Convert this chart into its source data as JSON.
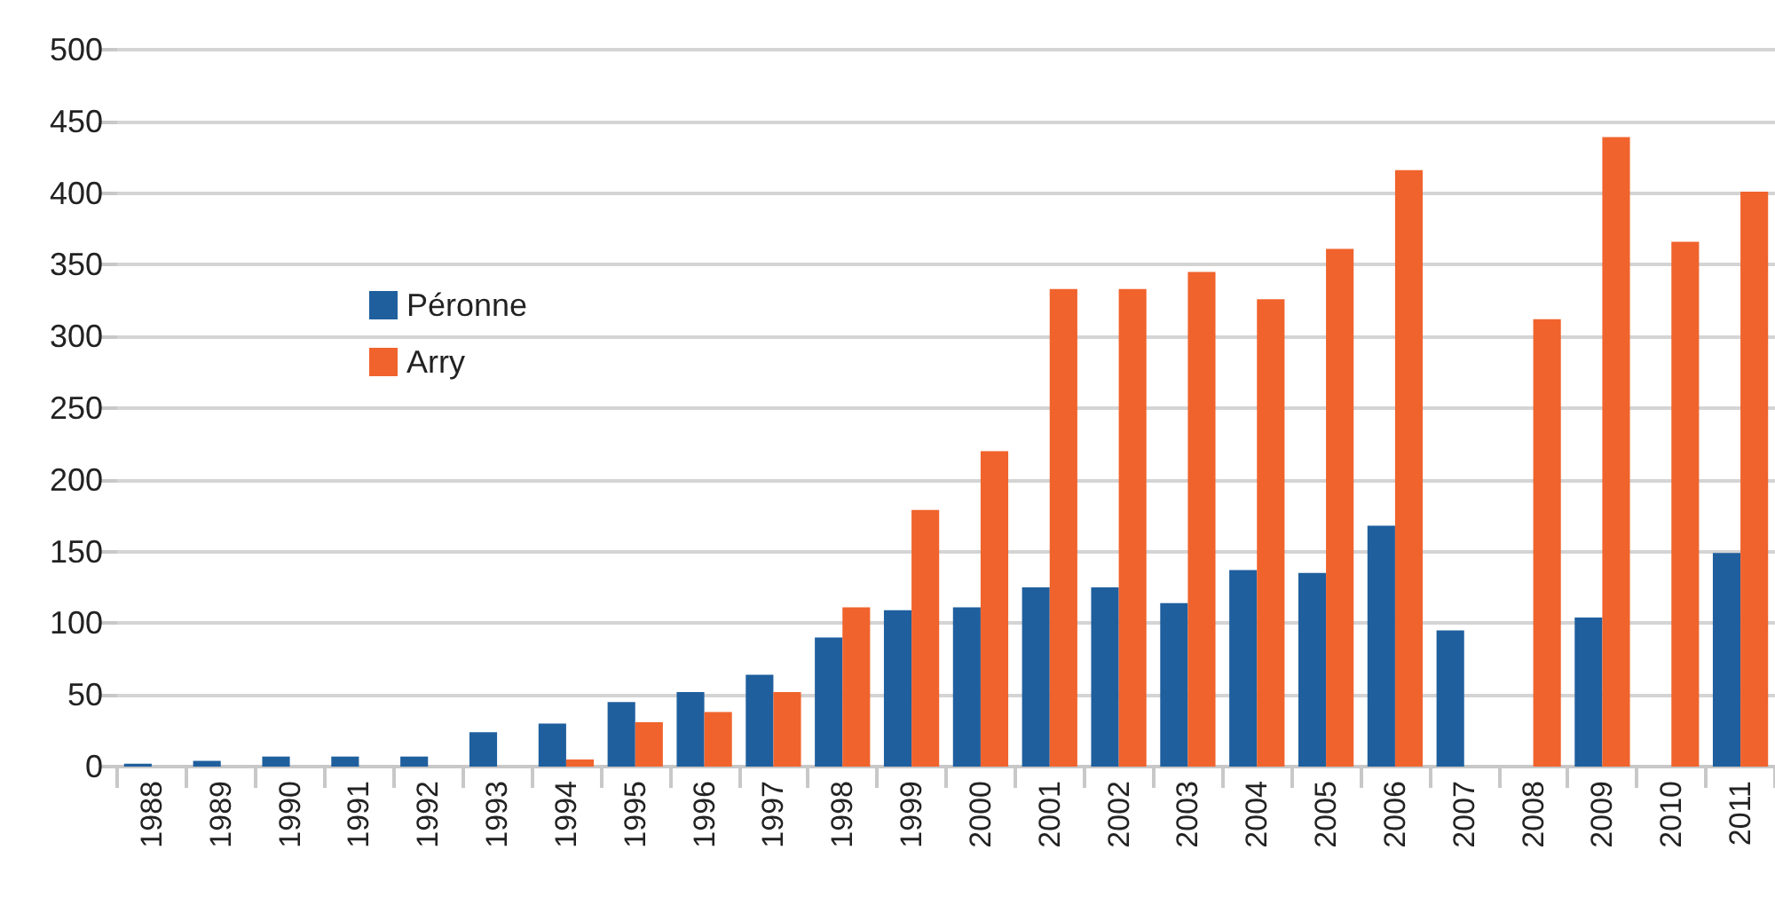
{
  "chart_data": {
    "type": "bar",
    "categories": [
      "1988",
      "1989",
      "1990",
      "1991",
      "1992",
      "1993",
      "1994",
      "1995",
      "1996",
      "1997",
      "1998",
      "1999",
      "2000",
      "2001",
      "2002",
      "2003",
      "2004",
      "2005",
      "2006",
      "2007",
      "2008",
      "2009",
      "2010",
      "2011"
    ],
    "series": [
      {
        "name": "Péronne",
        "color": "#1f5f9e",
        "values": [
          2,
          4,
          7,
          7,
          7,
          24,
          30,
          45,
          52,
          64,
          90,
          109,
          111,
          125,
          125,
          114,
          137,
          135,
          168,
          95,
          null,
          104,
          null,
          149
        ]
      },
      {
        "name": "Arry",
        "color": "#f0632d",
        "values": [
          null,
          null,
          null,
          null,
          null,
          null,
          5,
          31,
          38,
          52,
          111,
          179,
          220,
          333,
          333,
          345,
          326,
          361,
          416,
          null,
          312,
          439,
          366,
          401
        ]
      }
    ],
    "ylim": [
      0,
      500
    ],
    "yticks": [
      0,
      50,
      100,
      150,
      200,
      250,
      300,
      350,
      400,
      450,
      500
    ],
    "grid": "y",
    "legend": "left"
  }
}
